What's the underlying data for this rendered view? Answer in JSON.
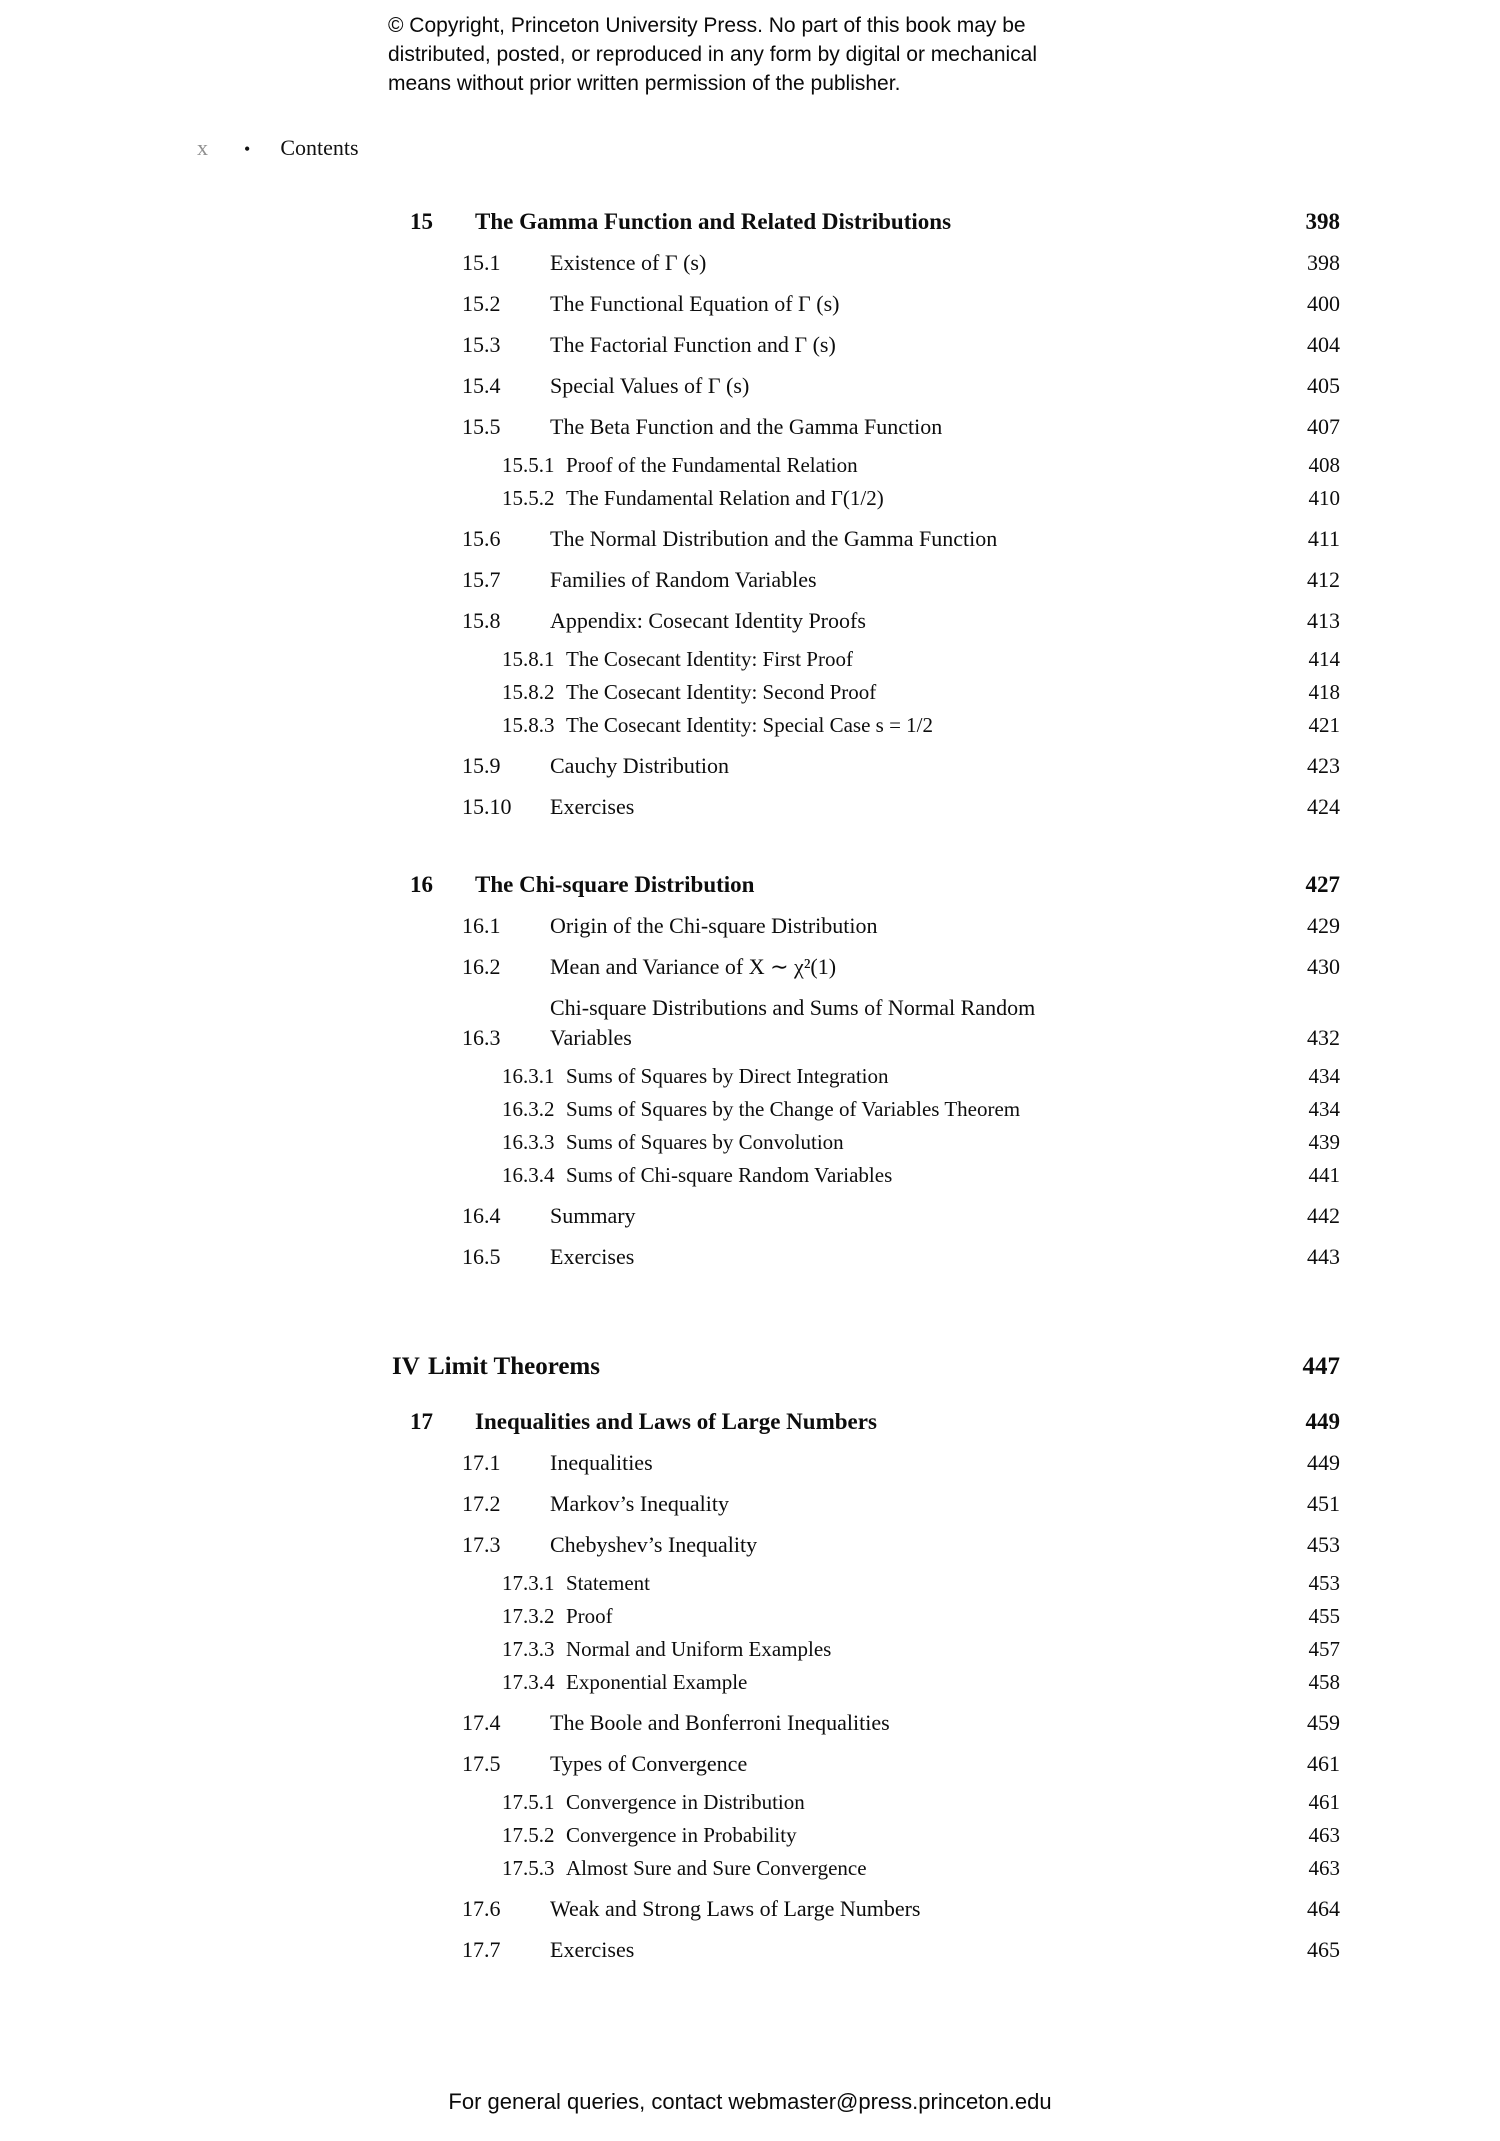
{
  "page": {
    "background": "#ffffff",
    "text_color": "#111111",
    "folio_color": "#8f8f8f"
  },
  "copyright": {
    "line1": "© Copyright, Princeton University Press. No part of this book may be",
    "line2": "distributed, posted, or reproduced in any form by digital or mechanical",
    "line3": "means without prior written permission of the publisher."
  },
  "header": {
    "page_number": "x",
    "bullet": "•",
    "title": "Contents"
  },
  "toc": {
    "ch15": {
      "num": "15",
      "title": "The Gamma Function and Related Distributions",
      "page": "398",
      "items": [
        {
          "num": "15.1",
          "title": "Existence of Γ (s)",
          "page": "398"
        },
        {
          "num": "15.2",
          "title": "The Functional Equation of Γ (s)",
          "page": "400"
        },
        {
          "num": "15.3",
          "title": "The Factorial Function and Γ (s)",
          "page": "404"
        },
        {
          "num": "15.4",
          "title": "Special Values of Γ (s)",
          "page": "405"
        },
        {
          "num": "15.5",
          "title": "The Beta Function and the Gamma Function",
          "page": "407"
        },
        {
          "num": "15.5.1",
          "title": "Proof of the Fundamental Relation",
          "page": "408"
        },
        {
          "num": "15.5.2",
          "title": "The Fundamental Relation and Γ(1/2)",
          "page": "410"
        },
        {
          "num": "15.6",
          "title": "The Normal Distribution and the Gamma Function",
          "page": "411"
        },
        {
          "num": "15.7",
          "title": "Families of Random Variables",
          "page": "412"
        },
        {
          "num": "15.8",
          "title": "Appendix: Cosecant Identity Proofs",
          "page": "413"
        },
        {
          "num": "15.8.1",
          "title": "The Cosecant Identity: First Proof",
          "page": "414"
        },
        {
          "num": "15.8.2",
          "title": "The Cosecant Identity: Second Proof",
          "page": "418"
        },
        {
          "num": "15.8.3",
          "title": "The Cosecant Identity: Special Case s = 1/2",
          "page": "421"
        },
        {
          "num": "15.9",
          "title": "Cauchy Distribution",
          "page": "423"
        },
        {
          "num": "15.10",
          "title": "Exercises",
          "page": "424"
        }
      ]
    },
    "ch16": {
      "num": "16",
      "title": "The Chi-square Distribution",
      "page": "427",
      "items": [
        {
          "num": "16.1",
          "title": "Origin of the Chi-square Distribution",
          "page": "429"
        },
        {
          "num": "16.2",
          "title": "Mean and Variance of X ∼ χ²(1)",
          "page": "430"
        },
        {
          "num": "16.3",
          "title": "Chi-square Distributions and Sums of Normal Random\nVariables",
          "page": "432"
        },
        {
          "num": "16.3.1",
          "title": "Sums of Squares by Direct Integration",
          "page": "434"
        },
        {
          "num": "16.3.2",
          "title": "Sums of Squares by the Change of Variables Theorem",
          "page": "434"
        },
        {
          "num": "16.3.3",
          "title": "Sums of Squares by Convolution",
          "page": "439"
        },
        {
          "num": "16.3.4",
          "title": "Sums of Chi-square Random Variables",
          "page": "441"
        },
        {
          "num": "16.4",
          "title": "Summary",
          "page": "442"
        },
        {
          "num": "16.5",
          "title": "Exercises",
          "page": "443"
        }
      ]
    },
    "part4": {
      "num": "IV",
      "title": "Limit Theorems",
      "page": "447"
    },
    "ch17": {
      "num": "17",
      "title": "Inequalities and Laws of Large Numbers",
      "page": "449",
      "items": [
        {
          "num": "17.1",
          "title": "Inequalities",
          "page": "449"
        },
        {
          "num": "17.2",
          "title": "Markov’s Inequality",
          "page": "451"
        },
        {
          "num": "17.3",
          "title": "Chebyshev’s Inequality",
          "page": "453"
        },
        {
          "num": "17.3.1",
          "title": "Statement",
          "page": "453"
        },
        {
          "num": "17.3.2",
          "title": "Proof",
          "page": "455"
        },
        {
          "num": "17.3.3",
          "title": "Normal and Uniform Examples",
          "page": "457"
        },
        {
          "num": "17.3.4",
          "title": "Exponential Example",
          "page": "458"
        },
        {
          "num": "17.4",
          "title": "The Boole and Bonferroni Inequalities",
          "page": "459"
        },
        {
          "num": "17.5",
          "title": "Types of Convergence",
          "page": "461"
        },
        {
          "num": "17.5.1",
          "title": "Convergence in Distribution",
          "page": "461"
        },
        {
          "num": "17.5.2",
          "title": "Convergence in Probability",
          "page": "463"
        },
        {
          "num": "17.5.3",
          "title": "Almost Sure and Sure Convergence",
          "page": "463"
        },
        {
          "num": "17.6",
          "title": "Weak and Strong Laws of Large Numbers",
          "page": "464"
        },
        {
          "num": "17.7",
          "title": "Exercises",
          "page": "465"
        }
      ]
    }
  },
  "footer": {
    "text": "For general queries, contact webmaster@press.princeton.edu"
  }
}
